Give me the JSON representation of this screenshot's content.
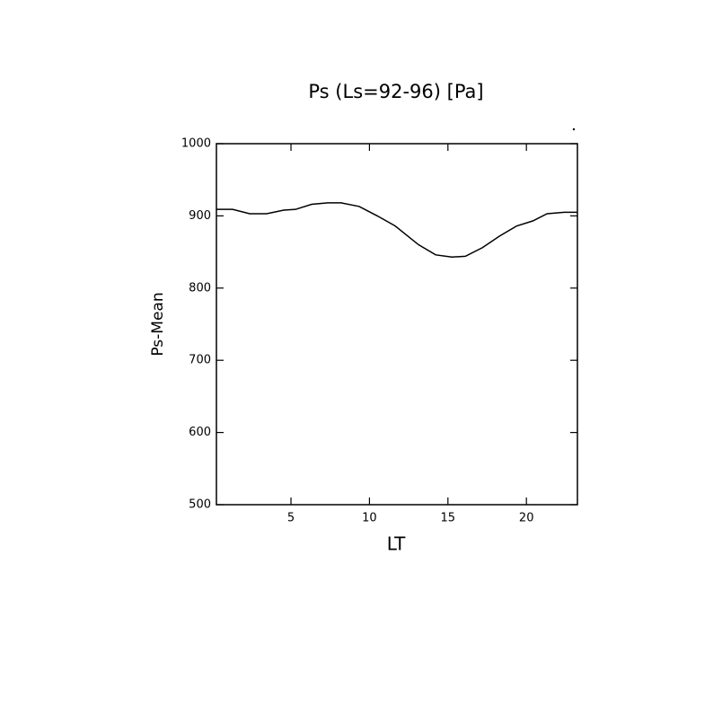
{
  "chart_data": {
    "type": "line",
    "title": "Ps (Ls=92-96) [Pa]",
    "x_label": "LT",
    "y_label": "Ps-Mean",
    "x": [
      0.25,
      1.28,
      2.37,
      3.45,
      4.54,
      5.29,
      6.32,
      7.35,
      8.21,
      9.35,
      10.5,
      11.64,
      13.13,
      14.22,
      15.25,
      16.11,
      17.2,
      18.29,
      19.38,
      20.41,
      21.32,
      22.41,
      23.25
    ],
    "series": [
      {
        "name": "Ps-Mean",
        "color": "#000000",
        "values": [
          909,
          909,
          903,
          903,
          908,
          909,
          916,
          918,
          918,
          913,
          900,
          886,
          860,
          846,
          843,
          844,
          856,
          872,
          886,
          893,
          903,
          905,
          905
        ]
      }
    ],
    "xlim": [
      0.25,
      23.25
    ],
    "xticks": [
      5,
      10,
      15,
      20
    ],
    "ylim": [
      500,
      1000
    ],
    "yticks": [
      500,
      600,
      700,
      800,
      900,
      1000
    ]
  }
}
